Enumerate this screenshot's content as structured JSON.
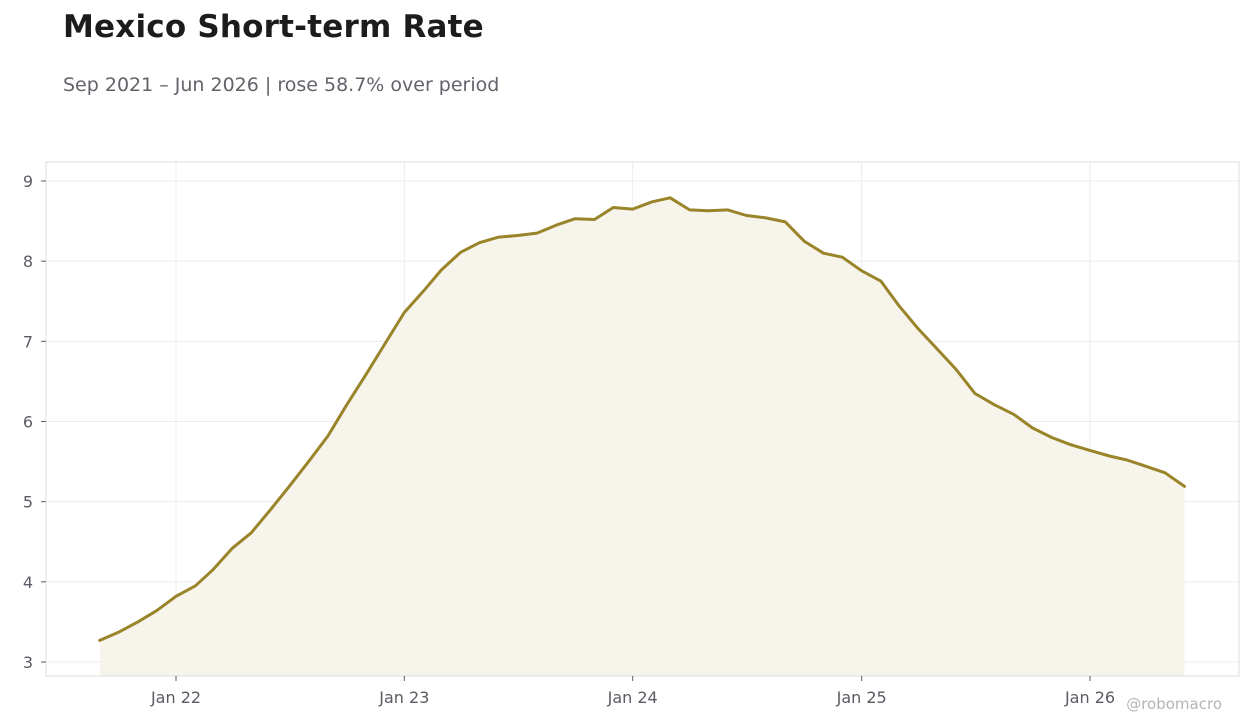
{
  "title": "Mexico Short-term Rate",
  "subtitle": "Sep 2021 – Jun 2026 | rose 58.7% over period",
  "watermark": "@robomacro",
  "colors": {
    "line": "#9a842a",
    "fill": "#f7f4ec",
    "grid": "#ececec",
    "frame": "#dcdcdc"
  },
  "chart_data": {
    "type": "area",
    "title": "Mexico Short-term Rate",
    "subtitle": "Sep 2021 – Jun 2026 | rose 58.7% over period",
    "xlabel": "",
    "ylabel": "",
    "ylim": [
      2.77,
      9.23
    ],
    "grid": true,
    "x_ticks": [
      {
        "date": "2022-01-01",
        "label": "Jan 22"
      },
      {
        "date": "2023-01-01",
        "label": "Jan 23"
      },
      {
        "date": "2024-01-01",
        "label": "Jan 24"
      },
      {
        "date": "2025-01-01",
        "label": "Jan 25"
      },
      {
        "date": "2026-01-01",
        "label": "Jan 26"
      }
    ],
    "y_ticks": [
      3,
      4,
      5,
      6,
      7,
      8,
      9
    ],
    "series": [
      {
        "x": [
          "2021-09",
          "2021-10",
          "2021-11",
          "2021-12",
          "2022-01",
          "2022-02",
          "2022-03",
          "2022-04",
          "2022-05",
          "2022-06",
          "2022-07",
          "2022-08",
          "2022-09",
          "2022-10",
          "2022-11",
          "2022-12",
          "2023-01",
          "2023-02",
          "2023-03",
          "2023-04",
          "2023-05",
          "2023-06",
          "2023-07",
          "2023-08",
          "2023-09",
          "2023-10",
          "2023-11",
          "2023-12",
          "2024-01",
          "2024-02",
          "2024-03",
          "2024-04",
          "2024-05",
          "2024-06",
          "2024-07",
          "2024-08",
          "2024-09",
          "2024-10",
          "2024-11",
          "2024-12",
          "2025-01",
          "2025-02",
          "2025-03",
          "2025-04",
          "2025-05",
          "2025-06",
          "2025-07",
          "2025-08",
          "2025-09",
          "2025-10",
          "2025-11",
          "2025-12",
          "2026-01",
          "2026-02",
          "2026-03",
          "2026-04",
          "2026-05",
          "2026-06"
        ],
        "values": [
          3.27,
          3.37,
          3.5,
          3.64,
          3.82,
          3.95,
          4.15,
          4.42,
          4.61,
          4.9,
          5.19,
          5.5,
          5.82,
          6.21,
          6.59,
          6.97,
          7.36,
          7.63,
          7.89,
          8.11,
          8.23,
          8.3,
          8.32,
          8.35,
          8.45,
          8.53,
          8.52,
          8.67,
          8.65,
          8.74,
          8.79,
          8.64,
          8.63,
          8.64,
          8.57,
          8.54,
          8.49,
          8.25,
          8.1,
          8.05,
          7.88,
          7.75,
          7.45,
          7.16,
          6.91,
          6.65,
          6.35,
          6.21,
          6.09,
          5.92,
          5.8,
          5.71,
          5.64,
          5.57,
          5.52,
          5.44,
          5.36,
          5.19
        ]
      }
    ]
  }
}
